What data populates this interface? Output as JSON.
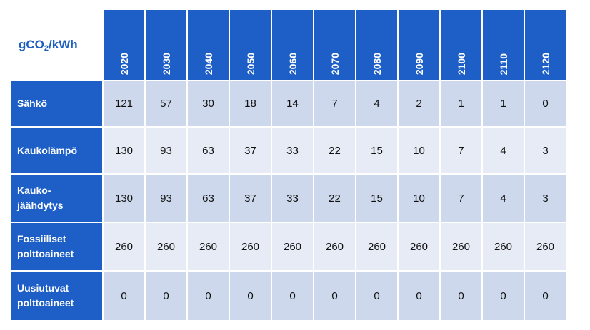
{
  "unit_html": "gCO2/kWh",
  "unit": {
    "prefix": "gCO",
    "sub": "2",
    "suffix": "/kWh"
  },
  "years": [
    "2020",
    "2030",
    "2040",
    "2050",
    "2060",
    "2070",
    "2080",
    "2090",
    "2100",
    "2110",
    "2120"
  ],
  "rows": [
    {
      "label": "Sähkö",
      "values": [
        "121",
        "57",
        "30",
        "18",
        "14",
        "7",
        "4",
        "2",
        "1",
        "1",
        "0"
      ]
    },
    {
      "label": "Kaukolämpö",
      "values": [
        "130",
        "93",
        "63",
        "37",
        "33",
        "22",
        "15",
        "10",
        "7",
        "4",
        "3"
      ]
    },
    {
      "label": "Kauko-\njäähdytys",
      "values": [
        "130",
        "93",
        "63",
        "37",
        "33",
        "22",
        "15",
        "10",
        "7",
        "4",
        "3"
      ]
    },
    {
      "label": "Fossiiliset\npolttoaineet",
      "values": [
        "260",
        "260",
        "260",
        "260",
        "260",
        "260",
        "260",
        "260",
        "260",
        "260",
        "260"
      ]
    },
    {
      "label": "Uusiutuvat\npolttoaineet",
      "values": [
        "0",
        "0",
        "0",
        "0",
        "0",
        "0",
        "0",
        "0",
        "0",
        "0",
        "0"
      ]
    }
  ],
  "colors": {
    "header_blue": "#1d5fc7",
    "unit_text": "#1f5fbf",
    "row_dark": "#cdd8ec",
    "row_light": "#e6ebf5"
  }
}
